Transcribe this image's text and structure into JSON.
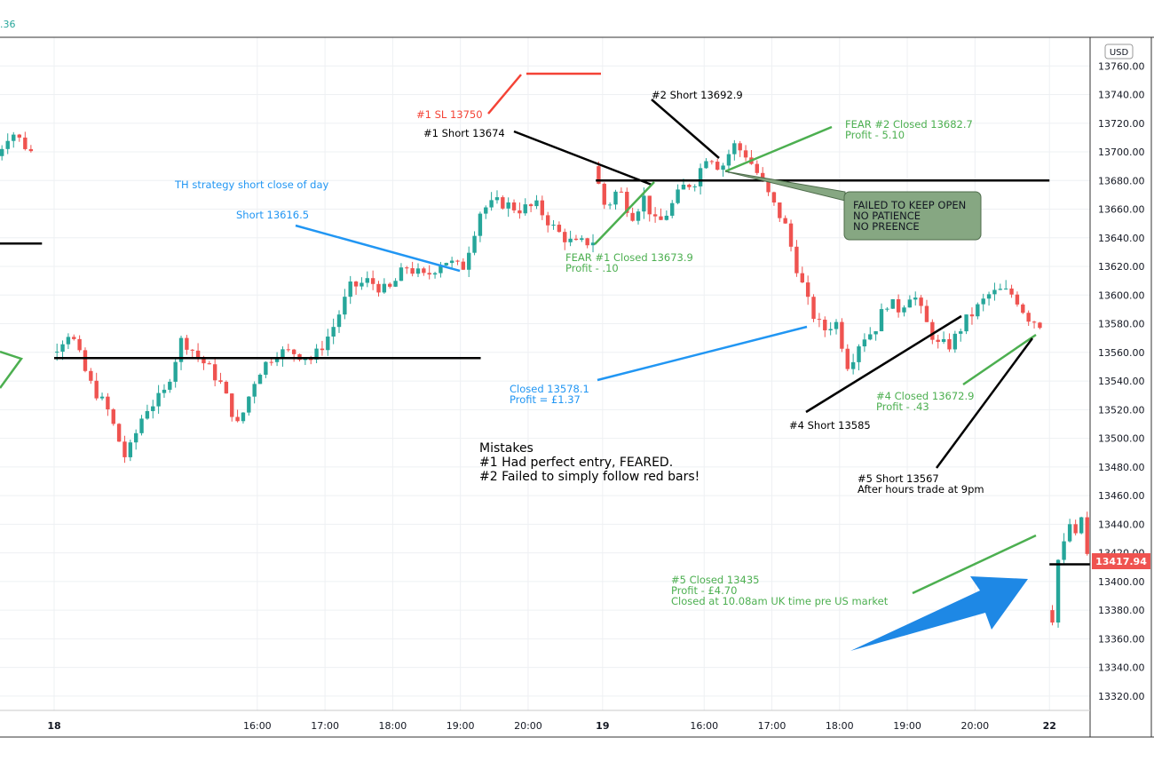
{
  "top_readout": ".36",
  "currency": "USD",
  "last_price": "13417.94",
  "colors": {
    "up": "#26a69a",
    "down": "#ef5350",
    "black": "#000000",
    "blue": "#2196f3",
    "green": "#4caf50",
    "red": "#f44336",
    "box_fill": "#86a782"
  },
  "chart_data": {
    "type": "candlestick",
    "ylim": [
      13310,
      13780
    ],
    "y_ticks": [
      13320,
      13340,
      13360,
      13380,
      13400,
      13420,
      13440,
      13460,
      13480,
      13500,
      13520,
      13540,
      13560,
      13580,
      13600,
      13620,
      13640,
      13660,
      13680,
      13700,
      13720,
      13740,
      13760
    ],
    "x_ticks": [
      {
        "t": 0,
        "label": "18"
      },
      {
        "t": 3,
        "label": "16:00"
      },
      {
        "t": 4,
        "label": "17:00"
      },
      {
        "t": 5,
        "label": "18:00"
      },
      {
        "t": 6,
        "label": "19:00"
      },
      {
        "t": 7,
        "label": "20:00"
      },
      {
        "t": 8.1,
        "label": "19"
      },
      {
        "t": 9.6,
        "label": "16:00"
      },
      {
        "t": 10.6,
        "label": "17:00"
      },
      {
        "t": 11.6,
        "label": "18:00"
      },
      {
        "t": 12.6,
        "label": "19:00"
      },
      {
        "t": 13.6,
        "label": "20:00"
      },
      {
        "t": 14.7,
        "label": "22"
      }
    ],
    "xlim": [
      -0.8,
      15.3
    ],
    "legs": [
      {
        "t0": -0.9,
        "t1": -0.3,
        "prices": [
          13690,
          13715,
          13700
        ]
      },
      {
        "t0": 0.0,
        "t1": 8.0,
        "prices": [
          13560,
          13575,
          13540,
          13520,
          13485,
          13520,
          13530,
          13570,
          13555,
          13540,
          13508,
          13545,
          13560,
          13560,
          13555,
          13575,
          13605,
          13610,
          13602,
          13620,
          13612,
          13625,
          13618,
          13660,
          13665,
          13660,
          13662,
          13645,
          13635,
          13638
        ]
      },
      {
        "t0": 8.0,
        "t1": 14.6,
        "prices": [
          13690,
          13660,
          13675,
          13655,
          13668,
          13648,
          13660,
          13675,
          13680,
          13700,
          13688,
          13705,
          13698,
          13683,
          13665,
          13650,
          13618,
          13590,
          13575,
          13582,
          13550,
          13570,
          13575,
          13595,
          13590,
          13603,
          13582,
          13565,
          13565,
          13580,
          13590,
          13600,
          13603,
          13600,
          13585,
          13580
        ]
      },
      {
        "t0": 14.7,
        "t1": 15.3,
        "prices": [
          13380,
          13375,
          13415,
          13425,
          13440,
          13430,
          13445,
          13418
        ]
      }
    ],
    "level_lines": [
      {
        "t0": -0.9,
        "t1": -0.18,
        "price": 13636
      },
      {
        "t0": 0.0,
        "t1": 6.3,
        "price": 13556
      },
      {
        "t0": 8.0,
        "t1": 14.7,
        "price": 13680
      },
      {
        "t0": 14.7,
        "t1": 15.3,
        "price": 13412
      }
    ]
  },
  "annotations": {
    "sl1": "#1 SL 13750",
    "short1": "#1 Short 13674",
    "short2": "#2 Short 13692.9",
    "fear2_closed": "FEAR #2 Closed 13682.7",
    "fear2_profit": "Profit - 5.10",
    "th_strategy": "TH strategy short close of day",
    "short_13616": "Short 13616.5",
    "fear1_closed": "FEAR #1 Closed 13673.9",
    "fear1_profit": "Profit - .10",
    "failed_box": [
      "FAILED TO KEEP OPEN",
      "NO PATIENCE",
      "NO PREENCE"
    ],
    "closed_13578": "Closed 13578.1",
    "closed_13578_profit": "Profit = £1.37",
    "closed4": "#4 Closed 13672.9",
    "closed4_profit": "Profit - .43",
    "short4": "#4 Short 13585",
    "short5": "#5 Short 13567",
    "short5_note": "After hours trade at 9pm",
    "closed5": "#5 Closed 13435",
    "closed5_profit": "Profit - £4.70",
    "closed5_note": "Closed at 10.08am UK time pre US market",
    "mistakes_title": "Mistakes",
    "mistake1": "#1  Had perfect entry, FEARED.",
    "mistake2": "#2  Failed to simply follow red bars!"
  }
}
